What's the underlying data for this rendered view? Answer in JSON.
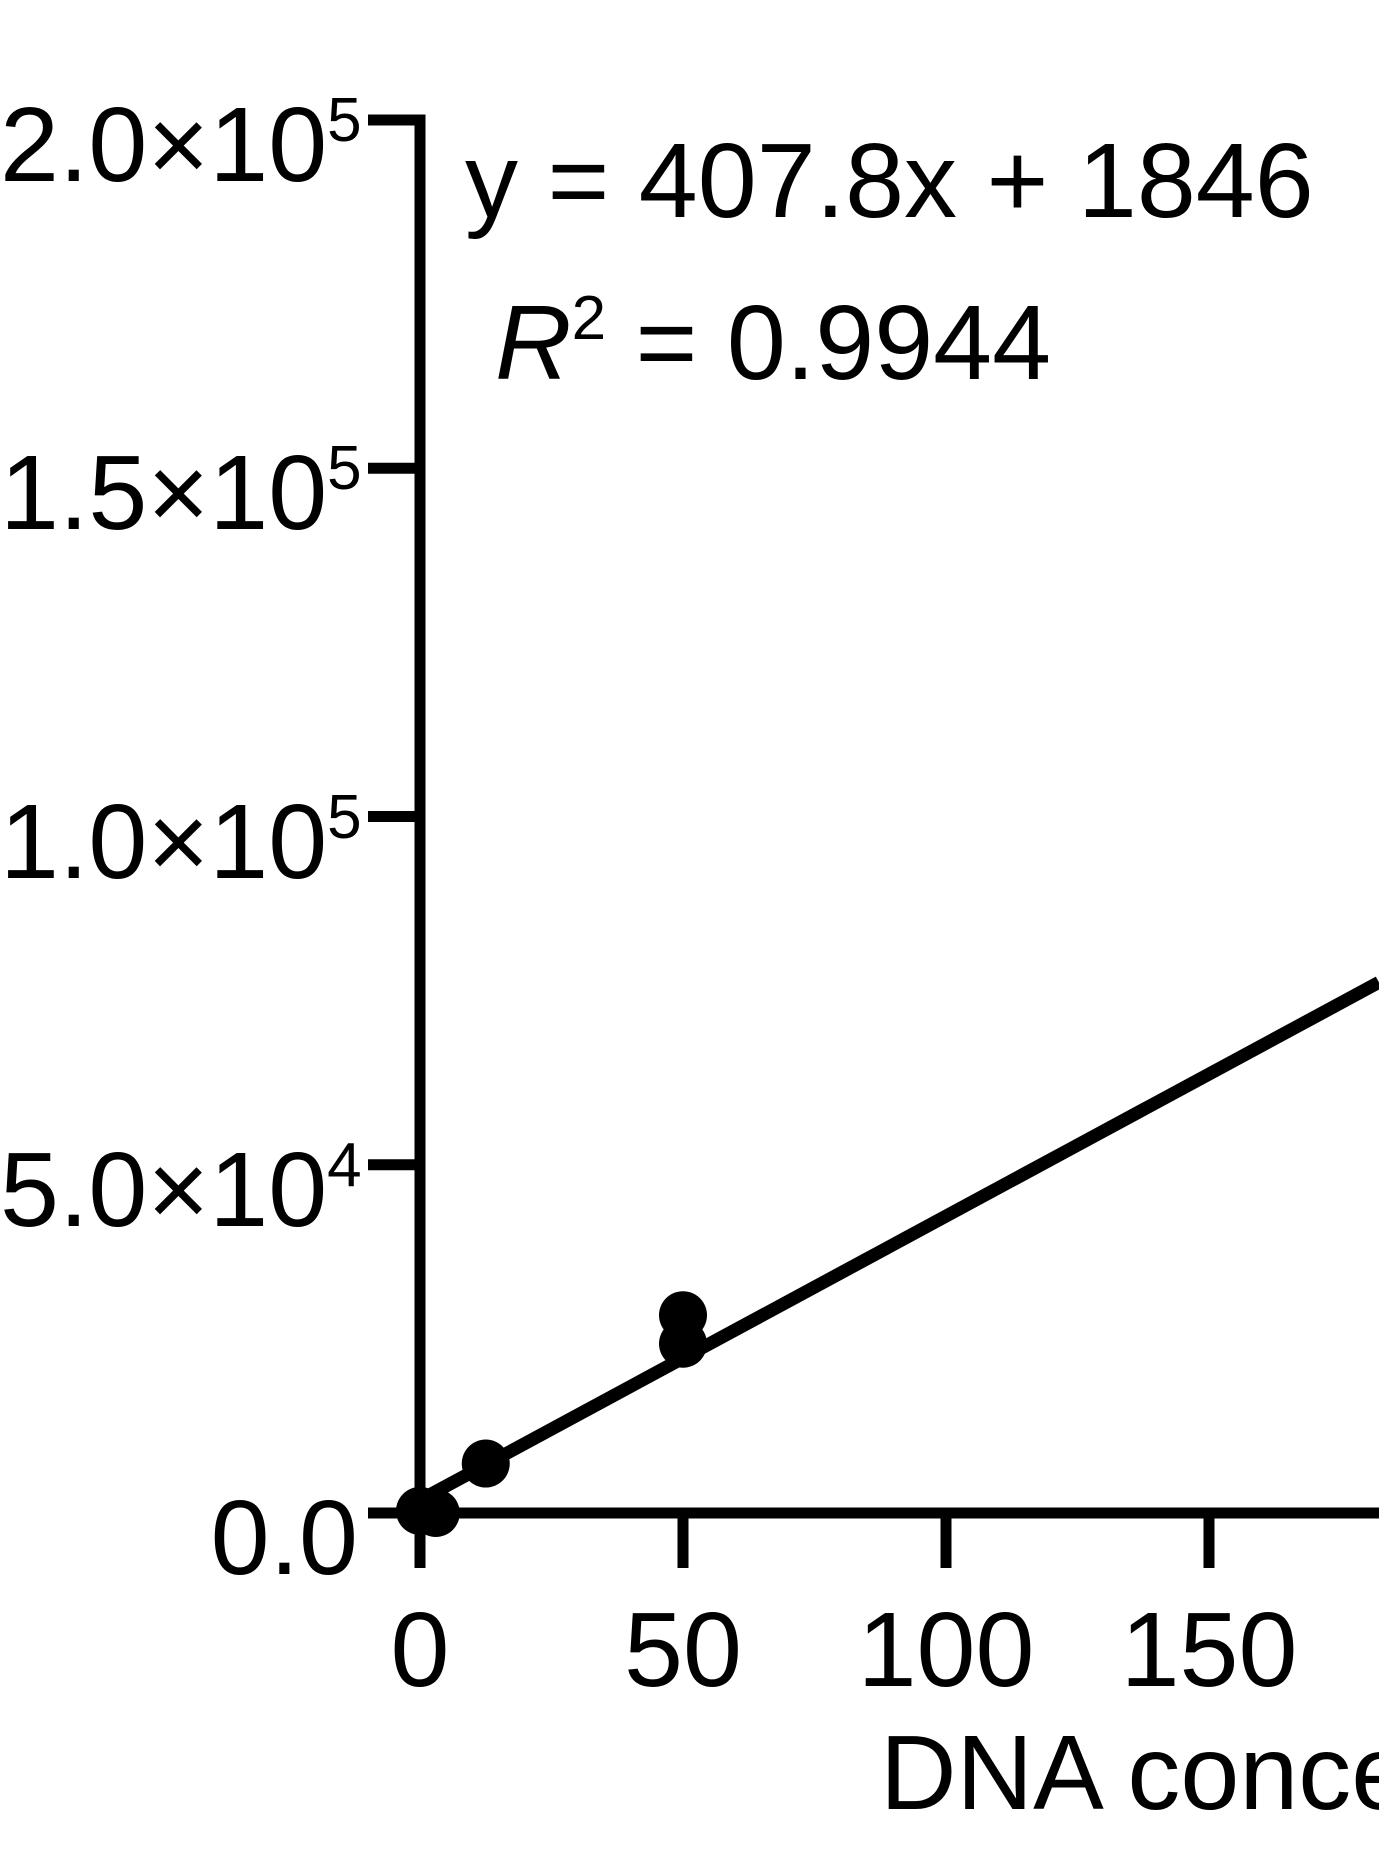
{
  "figure": {
    "background_color": "#ffffff",
    "ink_color": "#000000"
  },
  "annotation": {
    "equation_line": "y = 407.8x + 1846",
    "r_base": "R",
    "r_sup": "2",
    "r_rest": " = 0.9944"
  },
  "x_axis": {
    "title_visible": "DNA conce",
    "ticks": [
      {
        "label": "0",
        "value": 0
      },
      {
        "label": "50",
        "value": 50
      },
      {
        "label": "100",
        "value": 100
      },
      {
        "label": "150",
        "value": 150
      }
    ]
  },
  "y_axis": {
    "ticks": [
      {
        "text": "2.0×10",
        "sup": "5",
        "value": 200000
      },
      {
        "text": "1.5×10",
        "sup": "5",
        "value": 150000
      },
      {
        "text": "1.0×10",
        "sup": "5",
        "value": 100000
      },
      {
        "text": "5.0×10",
        "sup": "4",
        "value": 50000
      },
      {
        "text": "0.0",
        "sup": "",
        "value": 0
      }
    ]
  },
  "chart_data": {
    "type": "scatter",
    "title": "",
    "xlabel": "DNA conce",
    "ylabel": "",
    "xlim": [
      0,
      182
    ],
    "ylim": [
      0,
      200000
    ],
    "grid": false,
    "legend": "none",
    "x_ticks": [
      0,
      50,
      100,
      150
    ],
    "y_ticks": [
      0,
      50000,
      100000,
      150000,
      200000
    ],
    "points": [
      {
        "x": 0,
        "y": 300
      },
      {
        "x": 3,
        "y": 0
      },
      {
        "x": 12.5,
        "y": 7100
      },
      {
        "x": 50,
        "y": 24300
      },
      {
        "x": 50,
        "y": 28400
      }
    ],
    "regression": {
      "slope": 407.8,
      "intercept": 1846,
      "r_squared": 0.9944,
      "x_range": [
        0,
        182.3
      ]
    }
  }
}
